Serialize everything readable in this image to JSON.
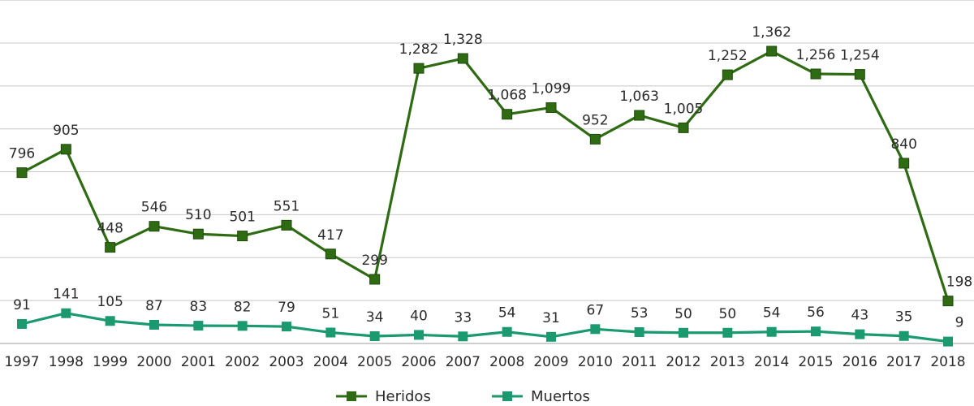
{
  "chart_data": {
    "type": "line",
    "categories": [
      "1997",
      "1998",
      "1999",
      "2000",
      "2001",
      "2002",
      "2003",
      "2004",
      "2005",
      "2006",
      "2007",
      "2008",
      "2009",
      "2010",
      "2011",
      "2012",
      "2013",
      "2014",
      "2015",
      "2016",
      "2017",
      "2018"
    ],
    "series": [
      {
        "name": "Heridos",
        "color": "#2e6b12",
        "values": [
          796,
          905,
          448,
          546,
          510,
          501,
          551,
          417,
          299,
          1282,
          1328,
          1068,
          1099,
          952,
          1063,
          1005,
          1252,
          1362,
          1256,
          1254,
          840,
          198
        ],
        "labels": [
          "796",
          "905",
          "448",
          "546",
          "510",
          "501",
          "551",
          "417",
          "299",
          "1,282",
          "1,328",
          "1,068",
          "1,099",
          "952",
          "1,063",
          "1,005",
          "1,252",
          "1,362",
          "1,256",
          "1,254",
          "840",
          "198"
        ]
      },
      {
        "name": "Muertos",
        "color": "#1a9a6e",
        "values": [
          91,
          141,
          105,
          87,
          83,
          82,
          79,
          51,
          34,
          40,
          33,
          54,
          31,
          67,
          53,
          50,
          50,
          54,
          56,
          43,
          35,
          9
        ],
        "labels": [
          "91",
          "141",
          "105",
          "87",
          "83",
          "82",
          "79",
          "51",
          "34",
          "40",
          "33",
          "54",
          "31",
          "67",
          "53",
          "50",
          "50",
          "54",
          "56",
          "43",
          "35",
          "9"
        ]
      }
    ],
    "ylim": [
      0,
      1600
    ],
    "grid": true,
    "legend_position": "bottom",
    "title": "",
    "xlabel": "",
    "ylabel": ""
  }
}
